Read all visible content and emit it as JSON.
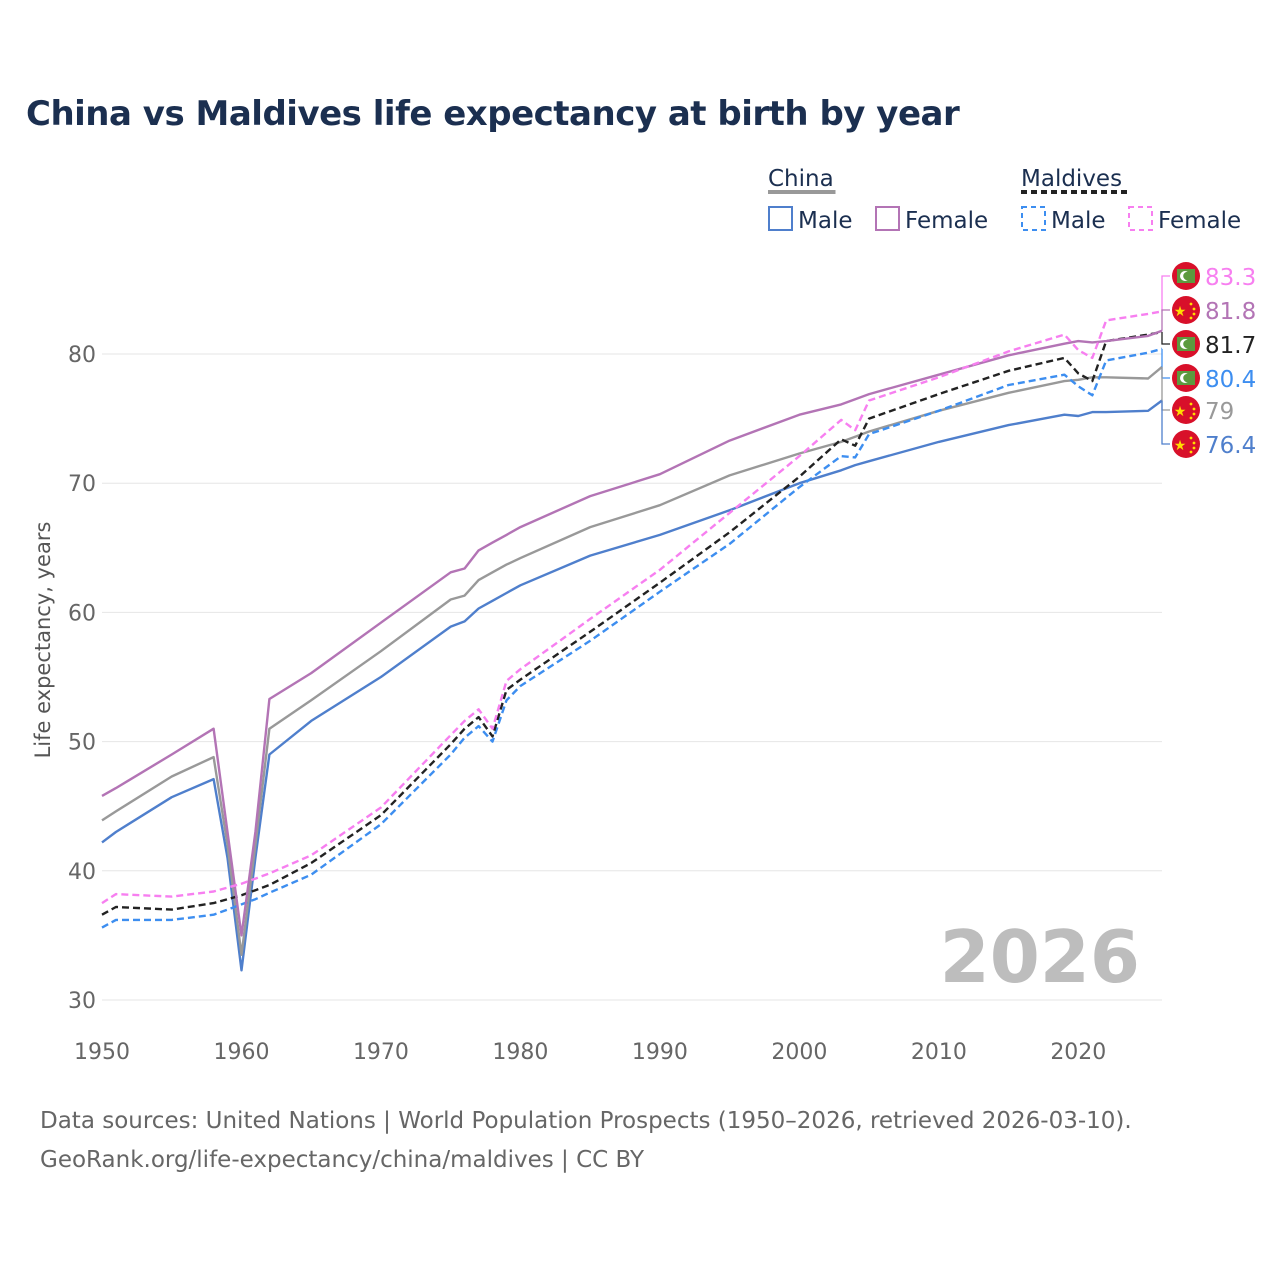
{
  "title": "China vs Maldives life expectancy at birth by year",
  "year_watermark": "2026",
  "source_line1": "Data sources: United Nations | World Population Prospects (1950–2026, retrieved 2026-03-10).",
  "source_line2": "GeoRank.org/life-expectancy/china/maldives | CC BY",
  "legend": {
    "groups": [
      {
        "name": "China",
        "line_color": "#999999",
        "dashed": false,
        "items": [
          {
            "label": "Male",
            "color": "#4f7fcc"
          },
          {
            "label": "Female",
            "color": "#b374b5"
          }
        ]
      },
      {
        "name": "Maldives",
        "line_color": "#222222",
        "dashed": true,
        "items": [
          {
            "label": "Male",
            "color": "#3d8ef0"
          },
          {
            "label": "Female",
            "color": "#f77ff0"
          }
        ]
      }
    ]
  },
  "chart_data": {
    "type": "line",
    "title": "China vs Maldives life expectancy at birth by year",
    "xlabel": "",
    "ylabel": "Life expectancy, years",
    "xlim": [
      1950,
      2026
    ],
    "ylim": [
      30,
      85
    ],
    "xticks": [
      "1950",
      "1960",
      "1970",
      "1980",
      "1990",
      "2000",
      "2010",
      "2020"
    ],
    "yticks": [
      "30",
      "40",
      "50",
      "60",
      "70",
      "80"
    ],
    "grid": true,
    "x": [
      1950,
      1951,
      1955,
      1958,
      1959,
      1960,
      1961,
      1962,
      1965,
      1970,
      1975,
      1976,
      1977,
      1978,
      1979,
      1980,
      1985,
      1990,
      1995,
      2000,
      2003,
      2004,
      2005,
      2010,
      2015,
      2019,
      2020,
      2021,
      2022,
      2025,
      2026
    ],
    "series": [
      {
        "name": "Maldives Female",
        "color": "#f77ff0",
        "dashed": true,
        "flag": "maldives",
        "end_label": "83.3",
        "values": [
          37.5,
          38.2,
          38.0,
          38.4,
          38.7,
          39.0,
          39.4,
          39.8,
          41.2,
          44.9,
          50.5,
          51.6,
          52.5,
          51.0,
          54.7,
          55.6,
          59.5,
          63.3,
          67.7,
          72.1,
          74.9,
          74.1,
          76.4,
          78.2,
          80.2,
          81.5,
          80.3,
          79.7,
          82.6,
          83.1,
          83.3
        ]
      },
      {
        "name": "China Female",
        "color": "#b374b5",
        "dashed": false,
        "flag": "china",
        "end_label": "81.8",
        "values": [
          45.8,
          46.4,
          49.0,
          51.0,
          43.0,
          35.0,
          43.0,
          53.3,
          55.3,
          59.2,
          63.1,
          63.4,
          64.8,
          65.4,
          66.0,
          66.6,
          69.0,
          70.7,
          73.3,
          75.3,
          76.1,
          76.5,
          76.9,
          78.4,
          79.9,
          80.8,
          81.0,
          80.9,
          81.0,
          81.4,
          81.8
        ]
      },
      {
        "name": "Maldives",
        "color": "#222222",
        "dashed": true,
        "flag": "maldives",
        "end_label": "81.7",
        "values": [
          36.6,
          37.2,
          37.0,
          37.5,
          37.8,
          38.1,
          38.5,
          38.9,
          40.6,
          44.3,
          49.8,
          51.0,
          51.9,
          50.4,
          54.0,
          54.8,
          58.5,
          62.3,
          66.2,
          70.5,
          73.4,
          72.9,
          75.0,
          76.9,
          78.7,
          79.7,
          78.5,
          77.9,
          81.0,
          81.5,
          81.7
        ]
      },
      {
        "name": "Maldives Male",
        "color": "#3d8ef0",
        "dashed": true,
        "flag": "maldives",
        "end_label": "80.4",
        "values": [
          35.6,
          36.2,
          36.2,
          36.6,
          37.0,
          37.4,
          37.8,
          38.3,
          39.7,
          43.6,
          49.0,
          50.3,
          51.2,
          50.0,
          53.2,
          54.3,
          57.8,
          61.6,
          65.3,
          69.7,
          72.1,
          72.0,
          73.8,
          75.6,
          77.6,
          78.4,
          77.5,
          76.8,
          79.5,
          80.1,
          80.4
        ]
      },
      {
        "name": "China",
        "color": "#999999",
        "dashed": false,
        "flag": "china",
        "end_label": "79",
        "values": [
          43.9,
          44.6,
          47.3,
          48.8,
          42.0,
          33.5,
          42.0,
          51.0,
          53.2,
          57.0,
          61.0,
          61.3,
          62.5,
          63.1,
          63.7,
          64.2,
          66.6,
          68.3,
          70.6,
          72.3,
          73.2,
          73.6,
          74.0,
          75.6,
          77.0,
          77.9,
          78.0,
          78.2,
          78.2,
          78.1,
          79.0
        ]
      },
      {
        "name": "China Male",
        "color": "#4f7fcc",
        "dashed": false,
        "flag": "china",
        "end_label": "76.4",
        "values": [
          42.2,
          43.0,
          45.7,
          47.1,
          41.0,
          32.3,
          41.0,
          49.0,
          51.6,
          55.0,
          58.9,
          59.3,
          60.3,
          60.9,
          61.5,
          62.1,
          64.4,
          66.0,
          67.9,
          70.0,
          71.0,
          71.4,
          71.7,
          73.2,
          74.5,
          75.3,
          75.2,
          75.5,
          75.5,
          75.6,
          76.4
        ]
      }
    ]
  }
}
